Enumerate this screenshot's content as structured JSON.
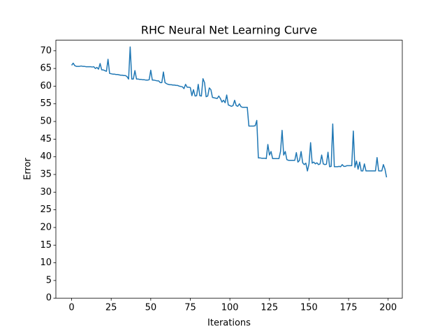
{
  "chart_data": {
    "type": "line",
    "title": "RHC Neural Net Learning Curve",
    "x_label": "Iterations",
    "y_label": "Error",
    "x": [
      0,
      1,
      2,
      3,
      4,
      5,
      6,
      7,
      8,
      9,
      10,
      11,
      12,
      13,
      14,
      15,
      16,
      17,
      18,
      19,
      20,
      21,
      22,
      23,
      24,
      25,
      26,
      27,
      28,
      29,
      30,
      31,
      32,
      33,
      34,
      35,
      36,
      37,
      38,
      39,
      40,
      41,
      42,
      43,
      44,
      45,
      46,
      47,
      48,
      49,
      50,
      51,
      52,
      53,
      54,
      55,
      56,
      57,
      58,
      59,
      60,
      61,
      62,
      63,
      64,
      65,
      66,
      67,
      68,
      69,
      70,
      71,
      72,
      73,
      74,
      75,
      76,
      77,
      78,
      79,
      80,
      81,
      82,
      83,
      84,
      85,
      86,
      87,
      88,
      89,
      90,
      91,
      92,
      93,
      94,
      95,
      96,
      97,
      98,
      99,
      100,
      101,
      102,
      103,
      104,
      105,
      106,
      107,
      108,
      109,
      110,
      111,
      112,
      113,
      114,
      115,
      116,
      117,
      118,
      119,
      120,
      121,
      122,
      123,
      124,
      125,
      126,
      127,
      128,
      129,
      130,
      131,
      132,
      133,
      134,
      135,
      136,
      137,
      138,
      139,
      140,
      141,
      142,
      143,
      144,
      145,
      146,
      147,
      148,
      149,
      150,
      151,
      152,
      153,
      154,
      155,
      156,
      157,
      158,
      159,
      160,
      161,
      162,
      163,
      164,
      165,
      166,
      167,
      168,
      169,
      170,
      171,
      172,
      173,
      174,
      175,
      176,
      177,
      178,
      179,
      180,
      181,
      182,
      183,
      184,
      185,
      186,
      187,
      188,
      189,
      190,
      191,
      192,
      193,
      194,
      195,
      196,
      197,
      198,
      199
    ],
    "series": [
      {
        "color": "#1f77b4",
        "values": [
          65.9,
          66.5,
          65.8,
          65.6,
          65.6,
          65.6,
          65.7,
          65.6,
          65.6,
          65.5,
          65.5,
          65.5,
          65.5,
          65.4,
          65.5,
          65.0,
          65.3,
          64.8,
          66.4,
          64.6,
          64.6,
          64.4,
          64.2,
          67.6,
          63.6,
          63.5,
          63.4,
          63.4,
          63.3,
          63.3,
          63.2,
          63.1,
          63.1,
          63.0,
          63.0,
          62.7,
          62.0,
          71.1,
          62.0,
          62.0,
          64.4,
          62.0,
          62.0,
          61.9,
          61.9,
          61.8,
          61.8,
          61.7,
          61.7,
          61.8,
          64.5,
          61.7,
          61.7,
          61.6,
          61.5,
          61.5,
          61.0,
          61.0,
          64.0,
          61.0,
          60.7,
          60.5,
          60.4,
          60.4,
          60.3,
          60.3,
          60.2,
          60.2,
          60.0,
          59.9,
          59.8,
          59.3,
          60.5,
          59.7,
          59.7,
          59.6,
          57.3,
          59.0,
          57.2,
          57.3,
          60.5,
          57.3,
          57.2,
          62.1,
          61.0,
          57.0,
          57.2,
          59.5,
          59.0,
          56.8,
          56.7,
          56.6,
          56.5,
          57.2,
          56.5,
          55.5,
          56.0,
          55.3,
          57.5,
          54.7,
          54.5,
          54.3,
          54.5,
          56.0,
          54.5,
          54.3,
          55.0,
          54.2,
          54.0,
          54.0,
          54.0,
          54.0,
          48.7,
          48.7,
          48.7,
          48.7,
          48.8,
          50.3,
          39.7,
          39.7,
          39.6,
          39.6,
          39.6,
          39.5,
          43.5,
          40.5,
          41.5,
          39.5,
          39.5,
          39.5,
          39.5,
          39.5,
          41.5,
          47.5,
          40.5,
          41.5,
          39.2,
          39.0,
          39.0,
          39.0,
          39.0,
          39.0,
          41.2,
          38.5,
          39.0,
          41.5,
          38.3,
          37.8,
          38.2,
          36.0,
          38.0,
          44.0,
          38.2,
          38.5,
          38.0,
          38.3,
          37.8,
          38.0,
          40.5,
          38.0,
          37.8,
          37.9,
          41.3,
          37.2,
          37.3,
          49.3,
          37.2,
          37.2,
          37.2,
          37.3,
          37.2,
          37.8,
          37.3,
          37.3,
          37.5,
          37.5,
          37.5,
          37.5,
          47.3,
          37.0,
          38.8,
          36.5,
          38.5,
          36.0,
          36.0,
          38.0,
          36.0,
          36.0,
          36.0,
          36.0,
          36.0,
          36.0,
          36.0,
          39.8,
          36.0,
          36.0,
          36.0,
          37.8,
          36.5,
          34.2
        ]
      }
    ],
    "xlim": [
      -9.95,
      208.95
    ],
    "xticks": [
      0,
      25,
      50,
      75,
      100,
      125,
      150,
      175,
      200
    ],
    "ylim": [
      0,
      73.0
    ],
    "yticks": [
      0,
      5,
      10,
      15,
      20,
      25,
      30,
      35,
      40,
      45,
      50,
      55,
      60,
      65,
      70
    ]
  }
}
